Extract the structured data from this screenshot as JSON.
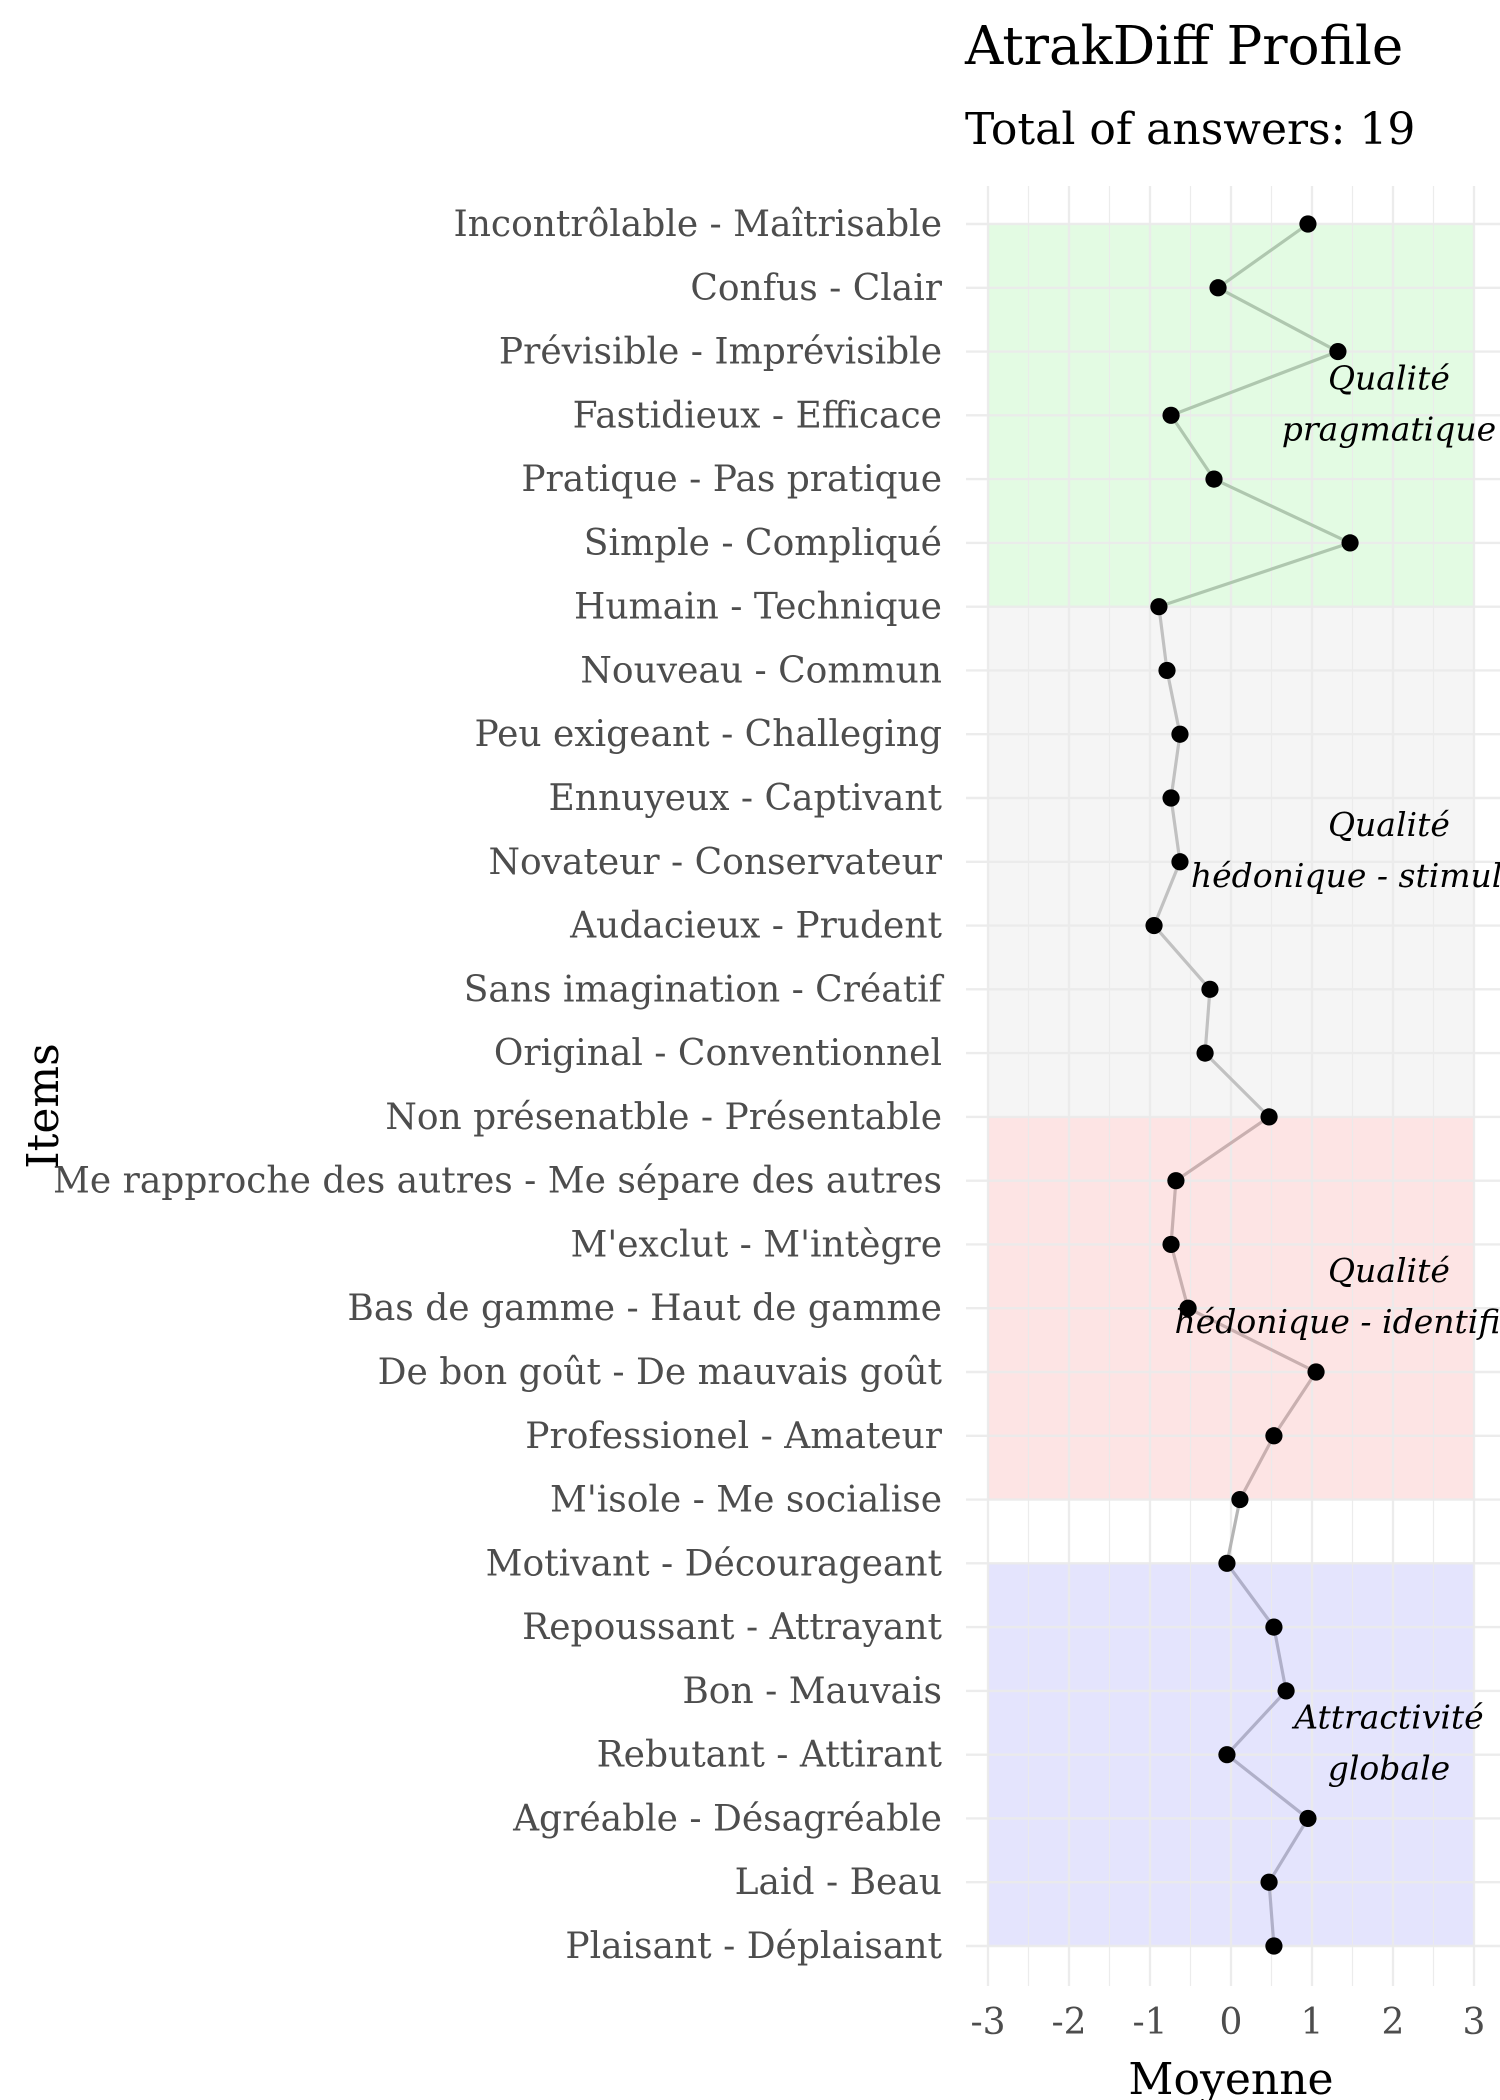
{
  "chart_data": {
    "type": "line",
    "title": "AtrakDiff Profile",
    "subtitle": "Total of answers: 19",
    "xlabel": "Moyenne",
    "ylabel": "Items",
    "xlim": [
      -3,
      3
    ],
    "x_ticks": [
      -3,
      -2,
      -1,
      0,
      1,
      2,
      3
    ],
    "x_tick_labels": [
      "-3",
      "-2",
      "-1",
      "0",
      "1",
      "2",
      "3"
    ],
    "grid": true,
    "items": [
      {
        "label": "Incontrôlable - Maîtrisable",
        "value": 0.95
      },
      {
        "label": "Confus - Clair",
        "value": -0.16
      },
      {
        "label": "Prévisible - Imprévisible",
        "value": 1.32
      },
      {
        "label": "Fastidieux - Efficace",
        "value": -0.74
      },
      {
        "label": "Pratique - Pas pratique",
        "value": -0.21
      },
      {
        "label": "Simple - Compliqué",
        "value": 1.47
      },
      {
        "label": "Humain - Technique",
        "value": -0.89
      },
      {
        "label": "Nouveau - Commun",
        "value": -0.79
      },
      {
        "label": "Peu exigeant - Challeging",
        "value": -0.63
      },
      {
        "label": "Ennuyeux - Captivant",
        "value": -0.74
      },
      {
        "label": "Novateur - Conservateur",
        "value": -0.63
      },
      {
        "label": "Audacieux - Prudent",
        "value": -0.95
      },
      {
        "label": "Sans imagination - Créatif",
        "value": -0.26
      },
      {
        "label": "Original - Conventionnel",
        "value": -0.32
      },
      {
        "label": "Non présenatble - Présentable",
        "value": 0.47
      },
      {
        "label": "Me rapproche des autres - Me sépare des autres",
        "value": -0.68
      },
      {
        "label": "M'exclut - M'intègre",
        "value": -0.74
      },
      {
        "label": "Bas de gamme - Haut de gamme",
        "value": -0.53
      },
      {
        "label": "De bon goût - De mauvais goût",
        "value": 1.05
      },
      {
        "label": "Professionel - Amateur",
        "value": 0.53
      },
      {
        "label": "M'isole - Me socialise",
        "value": 0.11
      },
      {
        "label": "Motivant - Décourageant",
        "value": -0.05
      },
      {
        "label": "Repoussant - Attrayant",
        "value": 0.53
      },
      {
        "label": "Bon - Mauvais",
        "value": 0.68
      },
      {
        "label": "Rebutant - Attirant",
        "value": -0.05
      },
      {
        "label": "Agréable - Désagréable",
        "value": 0.95
      },
      {
        "label": "Laid - Beau",
        "value": 0.47
      },
      {
        "label": "Plaisant - Déplaisant",
        "value": 0.53
      }
    ],
    "bands": [
      {
        "label_lines": [
          "Qualité",
          "pragmatique"
        ],
        "start_index": 0,
        "end_index": 6,
        "fill": "#e3fbe3",
        "line_color": "#afc7af"
      },
      {
        "label_lines": [
          "Qualité",
          "hédonique - stimulation"
        ],
        "start_index": 6,
        "end_index": 14,
        "fill": "#f5f5f5",
        "line_color": "#c1c1c1"
      },
      {
        "label_lines": [
          "Qualité",
          "hédonique - identification"
        ],
        "start_index": 14,
        "end_index": 20,
        "fill": "#fde4e4",
        "line_color": "#c9b0b0"
      },
      {
        "label_lines": [
          "Attractivité",
          "globale"
        ],
        "start_index": 21,
        "end_index": 27,
        "fill": "#e4e4fd",
        "line_color": "#b0b0c9"
      }
    ],
    "point_color": "#000000"
  }
}
